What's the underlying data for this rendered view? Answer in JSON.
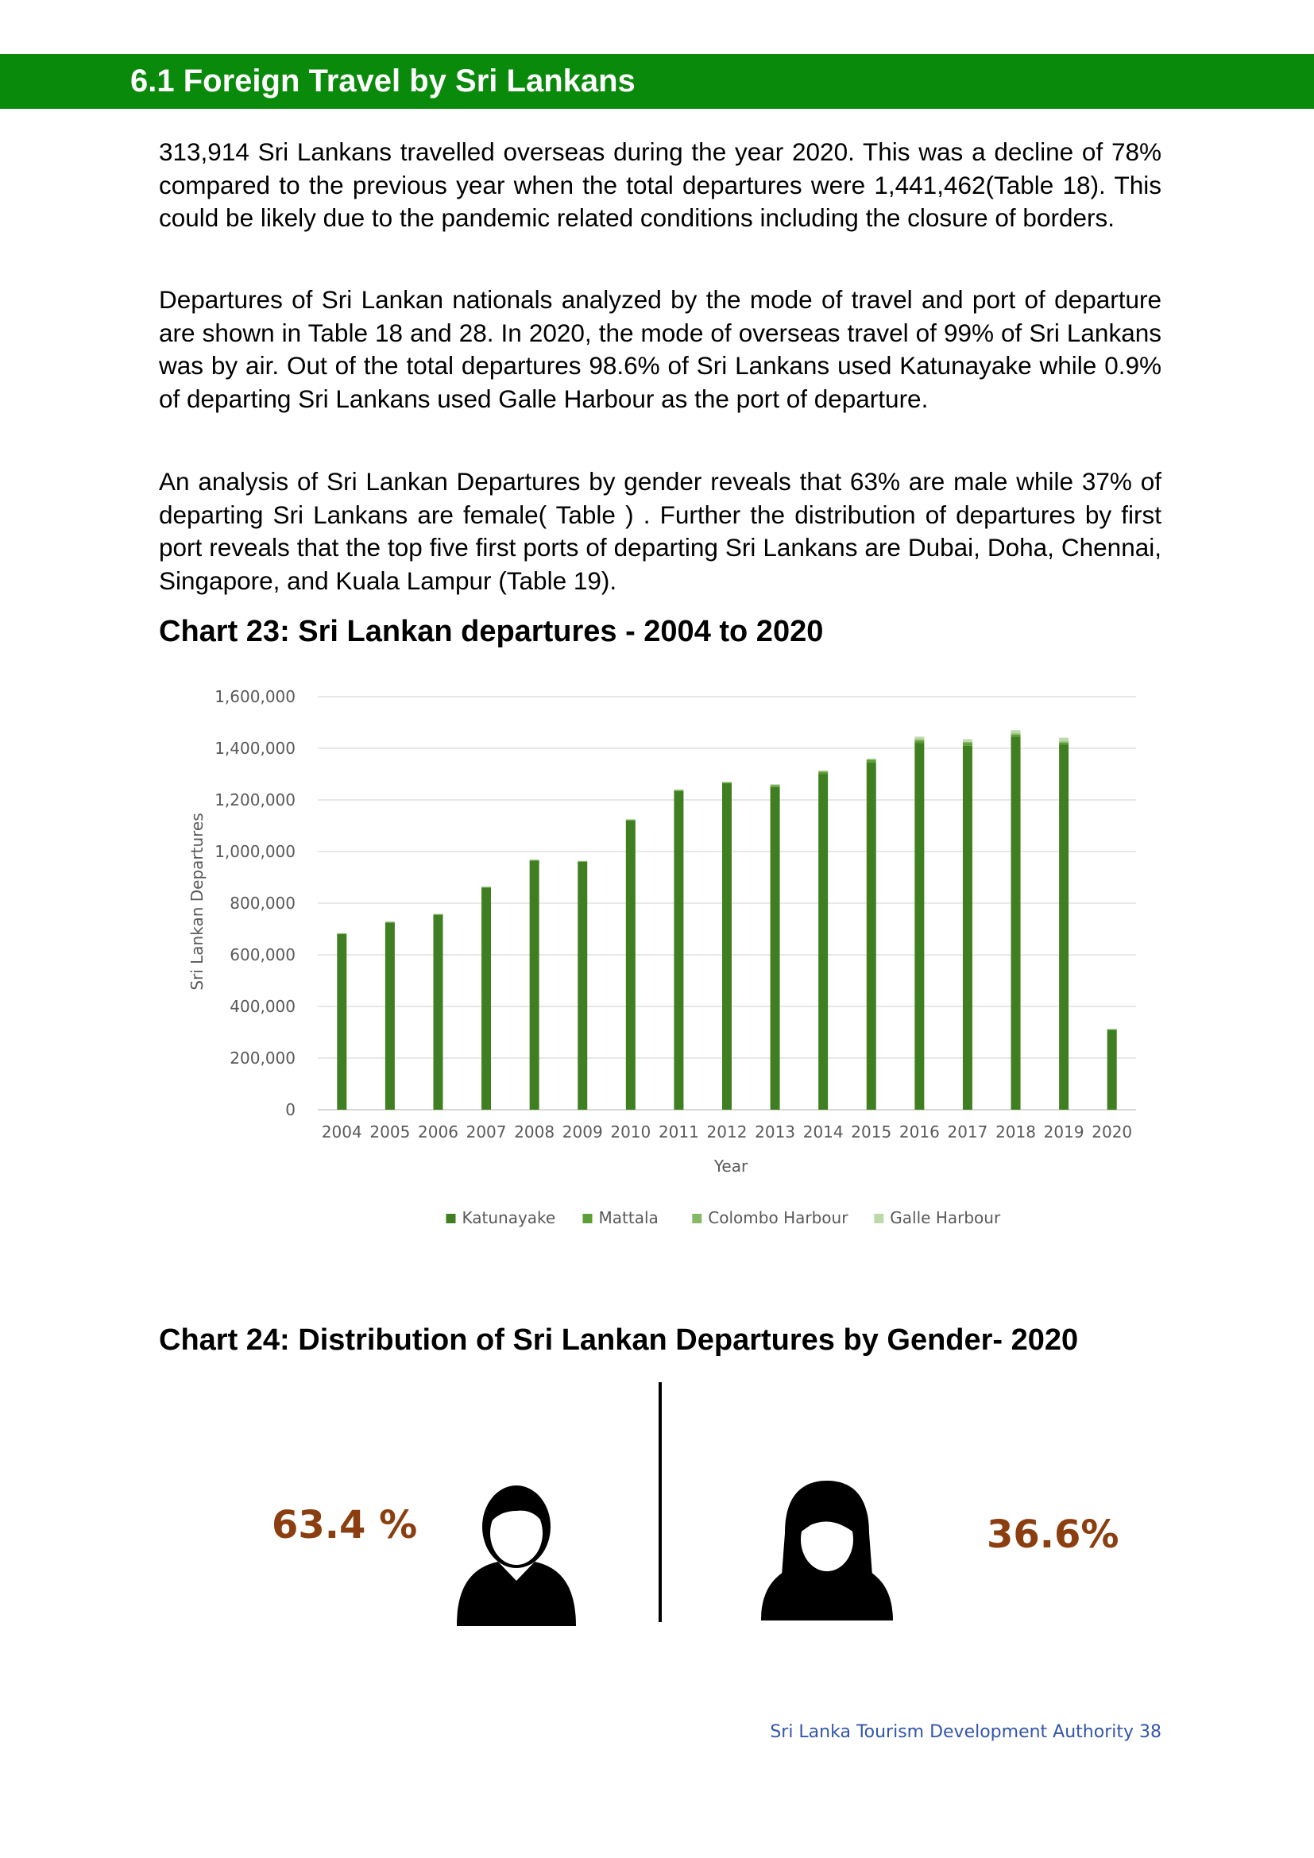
{
  "section": {
    "title": "6.1 Foreign Travel by Sri Lankans"
  },
  "paragraphs": [
    "313,914 Sri Lankans travelled overseas during the year 2020. This was a decline of 78% compared to the previous year when the total departures were 1,441,462(Table 18). This could be likely due to the pandemic related conditions including the closure of borders.",
    "Departures of Sri Lankan nationals analyzed by the mode of travel and port of departure are shown in Table 18 and 28. In 2020, the mode of overseas travel of 99% of Sri Lankans was by air. Out of the total departures 98.6% of Sri Lankans used Katunayake while 0.9% of departing Sri Lankans used Galle Harbour as the port of departure.",
    "An analysis of Sri Lankan Departures by gender reveals that 63% are male while 37% of departing Sri Lankans are female( Table ) . Further the distribution of departures by first port reveals that the top five first ports of departing Sri Lankans are Dubai, Doha, Chennai, Singapore, and Kuala Lampur (Table 19)."
  ],
  "chart23": {
    "heading_prefix": "Chart 23",
    "heading_bold": ": Sri Lankan departures - 2004 to 2020"
  },
  "chart24": {
    "heading_prefix": "Chart 24: ",
    "heading_bold": "Distribution of Sri Lankan Departures by Gender- 2020",
    "male_pct": "63.4 %",
    "female_pct": "36.6%",
    "male_icon": "male-person-icon",
    "female_icon": "female-person-icon"
  },
  "footer": {
    "text": "Sri Lanka Tourism Development Authority 38"
  },
  "chart_data": {
    "type": "bar",
    "stacked": true,
    "title": "",
    "xlabel": "Year",
    "ylabel": "Sri Lankan Departures",
    "ylim": [
      0,
      1600000
    ],
    "yticks": [
      0,
      200000,
      400000,
      600000,
      800000,
      1000000,
      1200000,
      1400000,
      1600000
    ],
    "ytick_labels": [
      "0",
      "200,000",
      "400,000",
      "600,000",
      "800,000",
      "1,000,000",
      "1,200,000",
      "1,400,000",
      "1,600,000"
    ],
    "grid": true,
    "legend_position": "bottom",
    "categories": [
      "2004",
      "2005",
      "2006",
      "2007",
      "2008",
      "2009",
      "2010",
      "2011",
      "2012",
      "2013",
      "2014",
      "2015",
      "2016",
      "2017",
      "2018",
      "2019",
      "2020"
    ],
    "series": [
      {
        "name": "Katunayake",
        "color": "#3f7f22",
        "values": [
          680000,
          725000,
          755000,
          860000,
          965000,
          960000,
          1120000,
          1235000,
          1265000,
          1250000,
          1300000,
          1345000,
          1420000,
          1410000,
          1445000,
          1415000,
          309500
        ]
      },
      {
        "name": "Mattala",
        "color": "#5e9e36",
        "values": [
          0,
          0,
          0,
          0,
          0,
          0,
          0,
          0,
          0,
          5000,
          8000,
          9000,
          10000,
          10000,
          8000,
          7000,
          1000
        ]
      },
      {
        "name": "Colombo Harbour",
        "color": "#86b866",
        "values": [
          3000,
          3000,
          3000,
          3000,
          3000,
          3000,
          4000,
          4000,
          4000,
          4000,
          4000,
          4000,
          5000,
          5000,
          5000,
          5000,
          500
        ]
      },
      {
        "name": "Galle Harbour",
        "color": "#bcd9aa",
        "values": [
          1000,
          1000,
          1000,
          1000,
          1000,
          1000,
          2000,
          2000,
          2000,
          2000,
          2000,
          2000,
          10000,
          10000,
          12000,
          14000,
          2800
        ]
      }
    ]
  }
}
